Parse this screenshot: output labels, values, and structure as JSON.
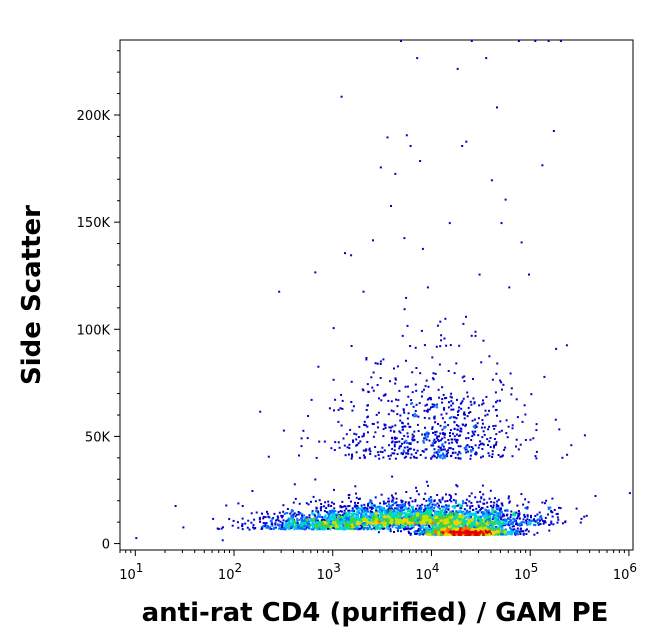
{
  "chart_data": {
    "type": "scatter",
    "plot_style": "density flow cytometry dot plot",
    "xlabel": "anti-rat CD4 (purified) / GAM PE",
    "ylabel": "Side Scatter",
    "x_scale": "log",
    "xlim": [
      7,
      1100000
    ],
    "ylim": [
      -3000,
      235000
    ],
    "grid": false,
    "x_ticks": [
      {
        "value": 10,
        "base": "10",
        "exp": "1"
      },
      {
        "value": 100,
        "base": "10",
        "exp": "2"
      },
      {
        "value": 1000,
        "base": "10",
        "exp": "3"
      },
      {
        "value": 10000,
        "base": "10",
        "exp": "4"
      },
      {
        "value": 100000,
        "base": "10",
        "exp": "5"
      },
      {
        "value": 1000000,
        "base": "10",
        "exp": "6"
      }
    ],
    "y_ticks": [
      {
        "value": 0,
        "label": "0"
      },
      {
        "value": 50000,
        "label": "50K"
      },
      {
        "value": 100000,
        "label": "100K"
      },
      {
        "value": 150000,
        "label": "150K"
      },
      {
        "value": 200000,
        "label": "200K"
      }
    ],
    "density_colors": [
      "#0000cc",
      "#0070ff",
      "#00c8ff",
      "#00e0a0",
      "#40d040",
      "#c8e000",
      "#ffd000",
      "#ff7000",
      "#e00000"
    ],
    "populations": [
      {
        "name": "main cluster",
        "center_x": 22000,
        "center_y": 4500,
        "spread_log_x": 0.22,
        "spread_y": 2500,
        "count": 1800,
        "weight": "high"
      },
      {
        "name": "body",
        "center_x": 8000,
        "center_y": 9000,
        "spread_log_x": 0.55,
        "spread_y": 6000,
        "count": 2600,
        "weight": "medium"
      },
      {
        "name": "left tail",
        "center_x": 1000,
        "center_y": 7000,
        "spread_log_x": 0.4,
        "spread_y": 4500,
        "count": 900,
        "weight": "medium"
      },
      {
        "name": "upper spread",
        "center_x": 10000,
        "center_y": 40000,
        "spread_log_x": 0.5,
        "spread_y": 25000,
        "count": 700,
        "weight": "low"
      }
    ],
    "sparse_points": [
      {
        "x": 10,
        "y": 3000
      },
      {
        "x": 25,
        "y": 18000
      },
      {
        "x": 30,
        "y": 8000
      },
      {
        "x": 60,
        "y": 12000
      },
      {
        "x": 75,
        "y": 2000
      },
      {
        "x": 150,
        "y": 25000
      },
      {
        "x": 180,
        "y": 62000
      },
      {
        "x": 220,
        "y": 41000
      },
      {
        "x": 280,
        "y": 118000
      },
      {
        "x": 550,
        "y": 60000
      },
      {
        "x": 650,
        "y": 127000
      },
      {
        "x": 700,
        "y": 83000
      },
      {
        "x": 1000,
        "y": 101000
      },
      {
        "x": 1200,
        "y": 209000
      },
      {
        "x": 1300,
        "y": 136000
      },
      {
        "x": 1500,
        "y": 135000
      },
      {
        "x": 2000,
        "y": 118000
      },
      {
        "x": 2500,
        "y": 142000
      },
      {
        "x": 3000,
        "y": 176000
      },
      {
        "x": 3500,
        "y": 190000
      },
      {
        "x": 3800,
        "y": 158000
      },
      {
        "x": 4200,
        "y": 173000
      },
      {
        "x": 4800,
        "y": 235000
      },
      {
        "x": 5200,
        "y": 143000
      },
      {
        "x": 5500,
        "y": 191000
      },
      {
        "x": 6000,
        "y": 186000
      },
      {
        "x": 7000,
        "y": 227000
      },
      {
        "x": 7500,
        "y": 179000
      },
      {
        "x": 8000,
        "y": 138000
      },
      {
        "x": 9000,
        "y": 120000
      },
      {
        "x": 12000,
        "y": 104000
      },
      {
        "x": 15000,
        "y": 150000
      },
      {
        "x": 18000,
        "y": 222000
      },
      {
        "x": 20000,
        "y": 186000
      },
      {
        "x": 22000,
        "y": 188000
      },
      {
        "x": 25000,
        "y": 235000
      },
      {
        "x": 30000,
        "y": 126000
      },
      {
        "x": 35000,
        "y": 227000
      },
      {
        "x": 40000,
        "y": 170000
      },
      {
        "x": 45000,
        "y": 204000
      },
      {
        "x": 50000,
        "y": 150000
      },
      {
        "x": 55000,
        "y": 161000
      },
      {
        "x": 60000,
        "y": 120000
      },
      {
        "x": 75000,
        "y": 235000
      },
      {
        "x": 80000,
        "y": 141000
      },
      {
        "x": 95000,
        "y": 126000
      },
      {
        "x": 110000,
        "y": 235000
      },
      {
        "x": 130000,
        "y": 177000
      },
      {
        "x": 150000,
        "y": 235000
      },
      {
        "x": 170000,
        "y": 193000
      },
      {
        "x": 200000,
        "y": 235000
      },
      {
        "x": 230000,
        "y": 93000
      },
      {
        "x": 350000,
        "y": 51000
      },
      {
        "x": 1000000,
        "y": 24000
      }
    ]
  }
}
